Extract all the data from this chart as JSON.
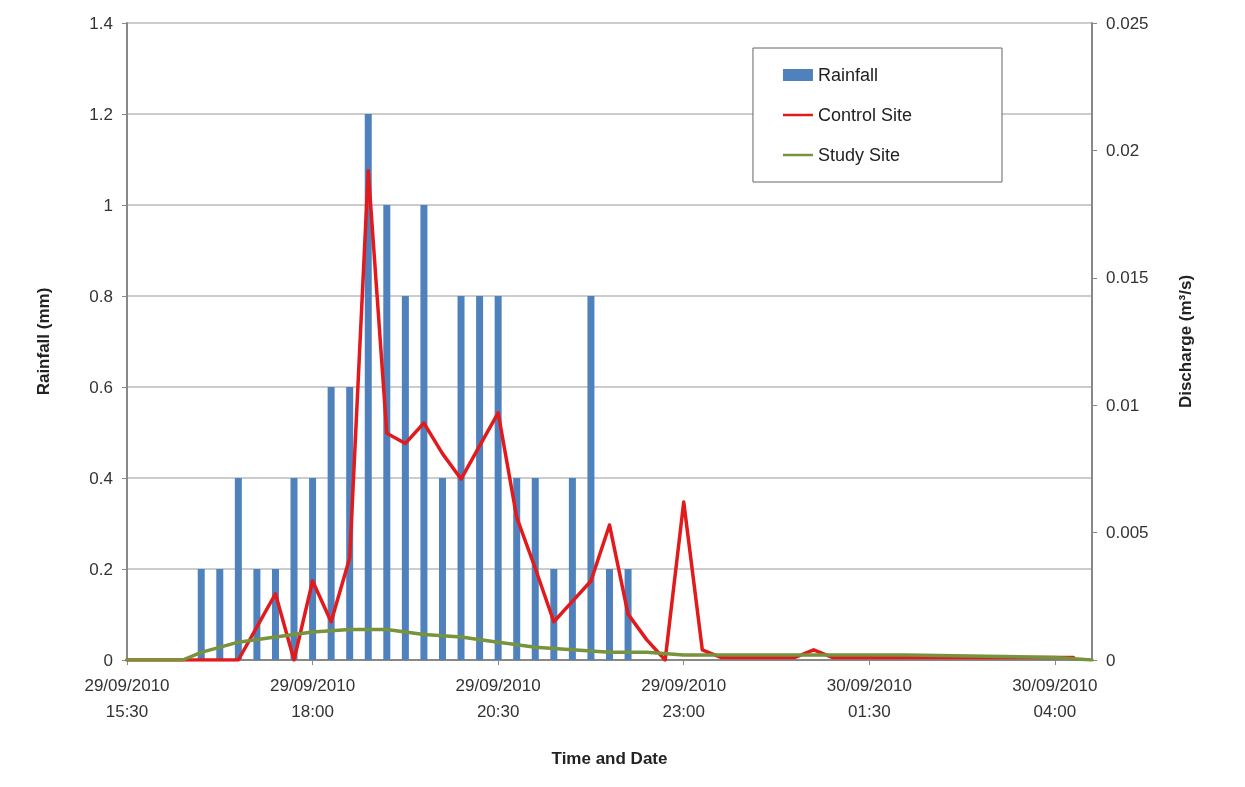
{
  "chart_data": {
    "type": "bar",
    "xlabel": "Time and Date",
    "ylabel": "Rainfall (mm)",
    "y2label": "Discharge (m³/s)",
    "xlim": [
      "2010-09-29T15:30",
      "2010-09-30T04:30"
    ],
    "xticks": [
      {
        "value": "2010-09-29T15:30",
        "label": "29/09/2010\n15:30"
      },
      {
        "value": "2010-09-29T18:00",
        "label": "29/09/2010\n18:00"
      },
      {
        "value": "2010-09-29T20:30",
        "label": "29/09/2010\n20:30"
      },
      {
        "value": "2010-09-29T23:00",
        "label": "29/09/2010\n23:00"
      },
      {
        "value": "2010-09-30T01:30",
        "label": "30/09/2010\n01:30"
      },
      {
        "value": "2010-09-30T04:00",
        "label": "30/09/2010\n04:00"
      }
    ],
    "ylim": [
      0,
      1.4
    ],
    "yticks": [
      0,
      0.2,
      0.4,
      0.6,
      0.8,
      1,
      1.2,
      1.4
    ],
    "y2lim": [
      0,
      0.025
    ],
    "y2ticks": [
      0,
      0.005,
      0.01,
      0.015,
      0.02,
      0.025
    ],
    "grid": "y",
    "legend": "top right",
    "marker": "none",
    "line_style": "solid",
    "series": [
      {
        "name": "Rainfall",
        "color": "#4f81bd",
        "x": [
          "2010-09-29T16:30",
          "2010-09-29T16:45",
          "2010-09-29T17:00",
          "2010-09-29T17:15",
          "2010-09-29T17:30",
          "2010-09-29T17:45",
          "2010-09-29T18:00",
          "2010-09-29T18:15",
          "2010-09-29T18:30",
          "2010-09-29T18:45",
          "2010-09-29T19:00",
          "2010-09-29T19:15",
          "2010-09-29T19:30",
          "2010-09-29T19:45",
          "2010-09-29T20:00",
          "2010-09-29T20:15",
          "2010-09-29T20:30",
          "2010-09-29T20:45",
          "2010-09-29T21:00",
          "2010-09-29T21:15",
          "2010-09-29T21:30",
          "2010-09-29T21:45",
          "2010-09-29T22:00",
          "2010-09-29T22:15"
        ],
        "values": [
          0.2,
          0.2,
          0.4,
          0.2,
          0.2,
          0.4,
          0.4,
          0.6,
          0.6,
          1.2,
          1.0,
          0.8,
          1.0,
          0.4,
          0.8,
          0.8,
          0.8,
          0.4,
          0.4,
          0.2,
          0.4,
          0.8,
          0.2,
          0.2
        ]
      },
      {
        "name": "Control Site",
        "type": "line",
        "axis": "y2",
        "color": "#e31a1c",
        "x": [
          "2010-09-29T15:30",
          "2010-09-29T16:30",
          "2010-09-29T17:00",
          "2010-09-29T17:30",
          "2010-09-29T17:45",
          "2010-09-29T18:00",
          "2010-09-29T18:15",
          "2010-09-29T18:30",
          "2010-09-29T18:45",
          "2010-09-29T19:00",
          "2010-09-29T19:15",
          "2010-09-29T19:30",
          "2010-09-29T19:45",
          "2010-09-29T20:00",
          "2010-09-29T20:15",
          "2010-09-29T20:30",
          "2010-09-29T20:45",
          "2010-09-29T21:00",
          "2010-09-29T21:15",
          "2010-09-29T21:30",
          "2010-09-29T21:45",
          "2010-09-29T22:00",
          "2010-09-29T22:15",
          "2010-09-29T22:30",
          "2010-09-29T22:45",
          "2010-09-29T23:00",
          "2010-09-29T23:15",
          "2010-09-29T23:30",
          "2010-09-30T00:30",
          "2010-09-30T00:45",
          "2010-09-30T01:00",
          "2010-09-30T04:15"
        ],
        "values": [
          0,
          0,
          0,
          0.0026,
          0,
          0.0031,
          0.0015,
          0.004,
          0.0192,
          0.0089,
          0.0085,
          0.0093,
          0.0081,
          0.0071,
          0.0084,
          0.0097,
          0.0056,
          0.0036,
          0.0015,
          0.0023,
          0.0031,
          0.0053,
          0.0018,
          0.0008,
          0,
          0.0062,
          0.0004,
          0.0001,
          0.0001,
          0.0004,
          0.0001,
          0.0001
        ]
      },
      {
        "name": "Study Site",
        "type": "line",
        "axis": "y2",
        "color": "#77933c",
        "x": [
          "2010-09-29T15:30",
          "2010-09-29T16:15",
          "2010-09-29T16:30",
          "2010-09-29T17:00",
          "2010-09-29T17:30",
          "2010-09-29T18:00",
          "2010-09-29T18:30",
          "2010-09-29T19:00",
          "2010-09-29T19:30",
          "2010-09-29T20:00",
          "2010-09-29T20:30",
          "2010-09-29T21:00",
          "2010-09-29T21:30",
          "2010-09-29T22:00",
          "2010-09-29T22:30",
          "2010-09-29T23:00",
          "2010-09-30T00:00",
          "2010-09-30T02:00",
          "2010-09-30T04:00",
          "2010-09-30T04:30"
        ],
        "values": [
          0,
          0,
          0.0003,
          0.0007,
          0.0009,
          0.0011,
          0.0012,
          0.0012,
          0.001,
          0.0009,
          0.0007,
          0.0005,
          0.0004,
          0.0003,
          0.0003,
          0.0002,
          0.0002,
          0.0002,
          0.0001,
          0
        ]
      }
    ]
  }
}
